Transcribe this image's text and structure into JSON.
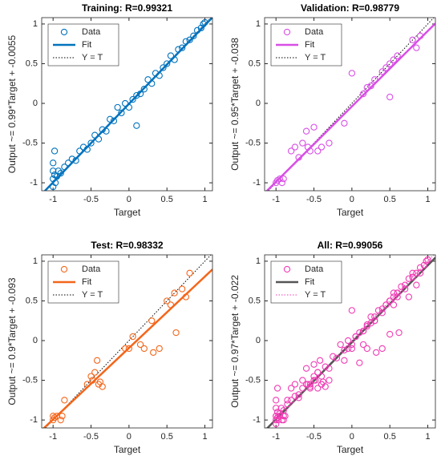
{
  "chart_data": [
    {
      "type": "scatter",
      "title": "Training: R=0.99321",
      "xlabel": "Target",
      "ylabel": "Output ~= 0.99*Target + -0.0055",
      "xlim": [
        -1.15,
        1.1
      ],
      "ylim": [
        -1.1,
        1.08
      ],
      "xticks": [
        -1,
        -0.5,
        0,
        0.5,
        1
      ],
      "yticks": [
        -1,
        -0.5,
        0,
        0.5,
        1
      ],
      "legend": "northwest",
      "series": [
        {
          "name": "Data",
          "color": "#0072bd",
          "marker": "circle",
          "x": [
            -1,
            -1,
            -0.98,
            -1,
            -0.97,
            -0.95,
            -1,
            -0.98,
            -0.93,
            -0.9,
            -0.85,
            -0.8,
            -0.75,
            -0.7,
            -0.65,
            -0.6,
            -0.55,
            -0.5,
            -0.45,
            -0.4,
            -0.35,
            -0.3,
            -0.25,
            -0.2,
            -0.15,
            -0.1,
            -0.05,
            0,
            0.05,
            0.1,
            0.1,
            0.15,
            0.2,
            0.25,
            0.3,
            0.35,
            0.4,
            0.45,
            0.5,
            0.55,
            0.6,
            0.65,
            0.7,
            0.75,
            0.8,
            0.85,
            0.9,
            0.95,
            1,
            0.98
          ],
          "y": [
            -1.05,
            -0.95,
            -0.9,
            -0.85,
            -1,
            -0.92,
            -0.75,
            -0.6,
            -0.85,
            -0.88,
            -0.8,
            -0.75,
            -0.7,
            -0.72,
            -0.6,
            -0.55,
            -0.58,
            -0.5,
            -0.4,
            -0.45,
            -0.33,
            -0.35,
            -0.2,
            -0.22,
            -0.05,
            -0.12,
            0,
            -0.05,
            0.05,
            0.1,
            -0.28,
            0.12,
            0.18,
            0.3,
            0.25,
            0.38,
            0.35,
            0.45,
            0.5,
            0.6,
            0.55,
            0.68,
            0.7,
            0.78,
            0.8,
            0.85,
            0.92,
            0.95,
            1.02,
            1
          ]
        },
        {
          "name": "Fit",
          "color": "#0072bd",
          "line": "solid",
          "x": [
            -1.15,
            1.1
          ],
          "y": [
            -1.144,
            1.0835
          ]
        },
        {
          "name": "Y = T",
          "color": "#000000",
          "line": "dotted",
          "x": [
            -1.15,
            1.1
          ],
          "y": [
            -1.15,
            1.1
          ]
        }
      ]
    },
    {
      "type": "scatter",
      "title": "Validation: R=0.98779",
      "xlabel": "Target",
      "ylabel": "Output ~= 0.95*Target + -0.038",
      "xlim": [
        -1.15,
        1.1
      ],
      "ylim": [
        -1.1,
        1.08
      ],
      "xticks": [
        -1,
        -0.5,
        0,
        0.5,
        1
      ],
      "yticks": [
        -1,
        -0.5,
        0,
        0.5,
        1
      ],
      "legend": "northwest",
      "series": [
        {
          "name": "Data",
          "color": "#d84fe6",
          "marker": "circle",
          "x": [
            -1,
            -0.98,
            -0.95,
            -0.92,
            -0.9,
            -0.8,
            -0.75,
            -0.7,
            -0.65,
            -0.6,
            -0.58,
            -0.55,
            -0.5,
            -0.45,
            -0.4,
            -0.3,
            -0.1,
            0,
            0.15,
            0.2,
            0.25,
            0.3,
            0.4,
            0.45,
            0.5,
            0.5,
            0.55,
            0.6,
            0.8,
            0.85,
            0.9
          ],
          "y": [
            -1,
            -0.97,
            -0.95,
            -1,
            -0.95,
            -0.6,
            -0.55,
            -0.68,
            -0.5,
            -0.35,
            -0.55,
            -0.6,
            -0.3,
            -0.6,
            -0.55,
            -0.5,
            -0.25,
            0.38,
            0.12,
            0.2,
            0.22,
            0.3,
            0.4,
            0.45,
            0.08,
            0.5,
            0.55,
            0.6,
            0.8,
            0.7,
            0.85
          ]
        },
        {
          "name": "Fit",
          "color": "#d84fe6",
          "line": "solid",
          "x": [
            -1.15,
            1.1
          ],
          "y": [
            -1.1305,
            1.007
          ]
        },
        {
          "name": "Y = T",
          "color": "#000000",
          "line": "dotted",
          "x": [
            -1.15,
            1.1
          ],
          "y": [
            -1.15,
            1.1
          ]
        }
      ]
    },
    {
      "type": "scatter",
      "title": "Test: R=0.98332",
      "xlabel": "Target",
      "ylabel": "Output ~= 0.9*Target + -0.093",
      "xlim": [
        -1.15,
        1.1
      ],
      "ylim": [
        -1.1,
        1.08
      ],
      "xticks": [
        -1,
        -0.5,
        0,
        0.5,
        1
      ],
      "yticks": [
        -1,
        -0.5,
        0,
        0.5,
        1
      ],
      "legend": "northwest",
      "series": [
        {
          "name": "Data",
          "color": "#f4661b",
          "marker": "circle",
          "x": [
            -1,
            -1,
            -0.98,
            -0.95,
            -0.9,
            -0.88,
            -0.85,
            -0.55,
            -0.5,
            -0.48,
            -0.45,
            -0.42,
            -0.4,
            -0.38,
            -0.35,
            -0.05,
            0,
            0.05,
            0.15,
            0.2,
            0.3,
            0.32,
            0.4,
            0.5,
            0.55,
            0.6,
            0.62,
            0.7,
            0.75,
            0.8
          ],
          "y": [
            -1,
            -0.95,
            -0.97,
            -0.95,
            -1,
            -0.95,
            -0.75,
            -0.55,
            -0.45,
            -0.5,
            -0.4,
            -0.25,
            -0.55,
            -0.52,
            -0.58,
            -0.1,
            -0.1,
            0.05,
            -0.05,
            -0.1,
            0.25,
            -0.15,
            -0.1,
            0.5,
            0.45,
            0.6,
            0.1,
            0.65,
            0.55,
            0.85
          ]
        },
        {
          "name": "Fit",
          "color": "#f4661b",
          "line": "solid",
          "x": [
            -1.15,
            1.1
          ],
          "y": [
            -1.128,
            0.897
          ]
        },
        {
          "name": "Y = T",
          "color": "#000000",
          "line": "dotted",
          "x": [
            -1.15,
            1.1
          ],
          "y": [
            -1.15,
            1.1
          ]
        }
      ]
    },
    {
      "type": "scatter",
      "title": "All: R=0.99056",
      "xlabel": "Target",
      "ylabel": "Output ~= 0.97*Target + -0.022",
      "xlim": [
        -1.15,
        1.1
      ],
      "ylim": [
        -1.1,
        1.08
      ],
      "xticks": [
        -1,
        -0.5,
        0,
        0.5,
        1
      ],
      "yticks": [
        -1,
        -0.5,
        0,
        0.5,
        1
      ],
      "legend": "northwest",
      "series": [
        {
          "name": "Data",
          "color": "#f03cb4",
          "marker": "circle",
          "x": [
            -1,
            -1,
            -0.98,
            -1,
            -0.97,
            -0.95,
            -1,
            -0.98,
            -0.93,
            -0.9,
            -0.85,
            -0.8,
            -0.75,
            -0.7,
            -0.65,
            -0.6,
            -0.55,
            -0.5,
            -0.45,
            -0.4,
            -0.35,
            -0.3,
            -0.25,
            -0.2,
            -0.15,
            -0.1,
            -0.05,
            0,
            0.05,
            0.1,
            0.1,
            0.15,
            0.2,
            0.25,
            0.3,
            0.35,
            0.4,
            0.45,
            0.5,
            0.55,
            0.6,
            0.65,
            0.7,
            0.75,
            0.8,
            0.85,
            0.9,
            0.95,
            1,
            0.98,
            -1,
            -0.98,
            -0.95,
            -0.92,
            -0.9,
            -0.8,
            -0.75,
            -0.7,
            -0.65,
            -0.6,
            -0.58,
            -0.55,
            -0.5,
            -0.45,
            -0.4,
            -0.3,
            -0.1,
            0,
            0.15,
            0.2,
            0.25,
            0.3,
            0.4,
            0.45,
            0.5,
            0.5,
            0.55,
            0.6,
            0.8,
            0.85,
            0.9,
            -1,
            -1,
            -0.98,
            -0.95,
            -0.9,
            -0.88,
            -0.85,
            -0.55,
            -0.5,
            -0.48,
            -0.45,
            -0.42,
            -0.4,
            -0.38,
            -0.35,
            -0.05,
            0,
            0.05,
            0.15,
            0.2,
            0.3,
            0.32,
            0.4,
            0.5,
            0.55,
            0.6,
            0.62,
            0.7,
            0.75,
            0.8
          ],
          "y": [
            -1.05,
            -0.95,
            -0.9,
            -0.85,
            -1,
            -0.92,
            -0.75,
            -0.6,
            -0.85,
            -0.88,
            -0.8,
            -0.75,
            -0.7,
            -0.72,
            -0.6,
            -0.55,
            -0.58,
            -0.5,
            -0.4,
            -0.45,
            -0.33,
            -0.35,
            -0.2,
            -0.22,
            -0.05,
            -0.12,
            0,
            -0.05,
            0.05,
            0.1,
            -0.28,
            0.12,
            0.18,
            0.3,
            0.25,
            0.38,
            0.35,
            0.45,
            0.5,
            0.6,
            0.55,
            0.68,
            0.7,
            0.78,
            0.8,
            0.85,
            0.92,
            0.95,
            1.02,
            1,
            -1,
            -0.97,
            -0.95,
            -1,
            -0.95,
            -0.6,
            -0.55,
            -0.68,
            -0.5,
            -0.35,
            -0.55,
            -0.6,
            -0.3,
            -0.6,
            -0.55,
            -0.5,
            -0.25,
            0.38,
            0.12,
            0.2,
            0.22,
            0.3,
            0.4,
            0.45,
            0.08,
            0.5,
            0.55,
            0.6,
            0.8,
            0.7,
            0.85,
            -1,
            -0.95,
            -0.97,
            -0.95,
            -1,
            -0.95,
            -0.75,
            -0.55,
            -0.45,
            -0.5,
            -0.4,
            -0.25,
            -0.55,
            -0.52,
            -0.58,
            -0.1,
            -0.1,
            0.05,
            -0.05,
            -0.1,
            0.25,
            -0.15,
            -0.1,
            0.5,
            0.45,
            0.6,
            0.1,
            0.65,
            0.55,
            0.85
          ]
        },
        {
          "name": "Fit",
          "color": "#555555",
          "line": "solid",
          "x": [
            -1.15,
            1.1
          ],
          "y": [
            -1.1375,
            1.045
          ]
        },
        {
          "name": "Y = T",
          "color": "#f03cb4",
          "line": "dotted",
          "x": [
            -1.15,
            1.1
          ],
          "y": [
            -1.15,
            1.1
          ]
        }
      ]
    }
  ]
}
